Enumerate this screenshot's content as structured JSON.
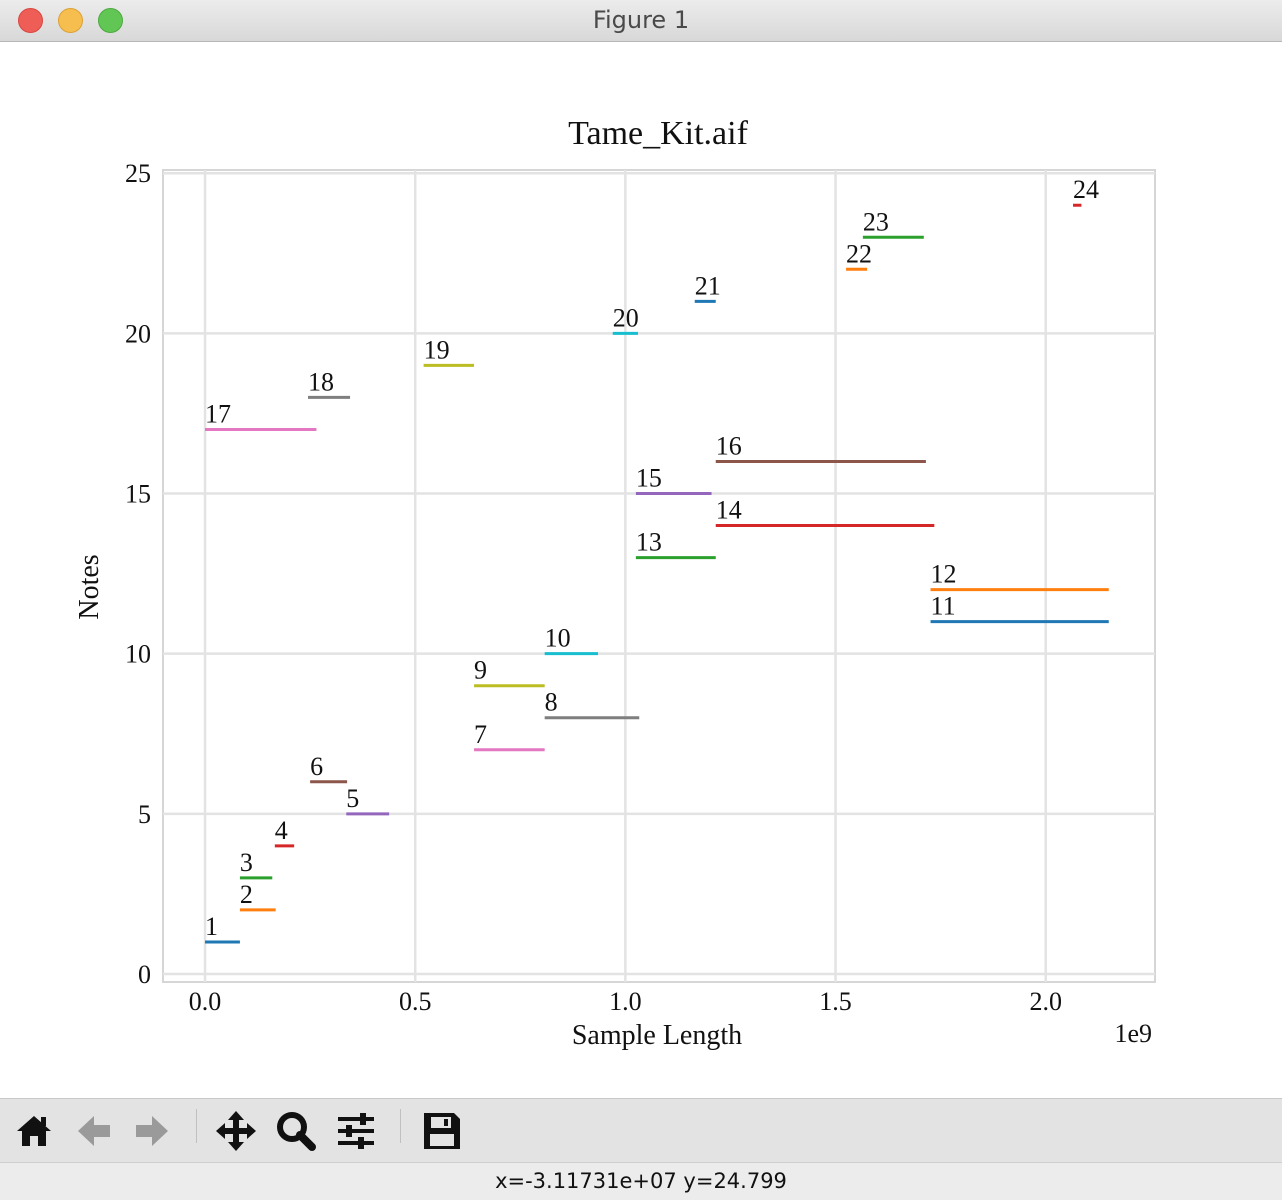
{
  "window": {
    "title": "Figure 1"
  },
  "toolbar": {
    "buttons": [
      {
        "name": "home-button",
        "icon": "home-icon"
      },
      {
        "name": "back-button",
        "icon": "arrow-left-icon"
      },
      {
        "name": "forward-button",
        "icon": "arrow-right-icon"
      },
      {
        "name": "pan-button",
        "icon": "move-icon"
      },
      {
        "name": "zoom-button",
        "icon": "magnifier-icon"
      },
      {
        "name": "configure-subplots-button",
        "icon": "sliders-icon"
      },
      {
        "name": "save-button",
        "icon": "floppy-disk-icon"
      }
    ]
  },
  "status": {
    "coords": "x=-3.11731e+07 y=24.799"
  },
  "chart_data": {
    "type": "line",
    "title": "Tame_Kit.aif",
    "xlabel": "Sample Length",
    "ylabel": "Notes",
    "x_offset_label": "1e9",
    "xlim": [
      -0.1,
      2.26
    ],
    "ylim": [
      -0.25,
      25.1
    ],
    "x_ticks": [
      0.0,
      0.5,
      1.0,
      1.5,
      2.0
    ],
    "x_tick_labels": [
      "0.0",
      "0.5",
      "1.0",
      "1.5",
      "2.0"
    ],
    "y_ticks": [
      0,
      5,
      10,
      15,
      20,
      25
    ],
    "y_tick_labels": [
      "0",
      "5",
      "10",
      "15",
      "20",
      "25"
    ],
    "grid": true,
    "series": [
      {
        "label": "1",
        "y": 1,
        "x_start": 0.0,
        "x_end": 0.083,
        "color": "#1f77b4"
      },
      {
        "label": "2",
        "y": 2,
        "x_start": 0.083,
        "x_end": 0.168,
        "color": "#ff7f0e"
      },
      {
        "label": "3",
        "y": 3,
        "x_start": 0.083,
        "x_end": 0.16,
        "color": "#2ca02c"
      },
      {
        "label": "4",
        "y": 4,
        "x_start": 0.166,
        "x_end": 0.212,
        "color": "#d62728"
      },
      {
        "label": "5",
        "y": 5,
        "x_start": 0.336,
        "x_end": 0.438,
        "color": "#9467bd"
      },
      {
        "label": "6",
        "y": 6,
        "x_start": 0.25,
        "x_end": 0.338,
        "color": "#8c564b"
      },
      {
        "label": "7",
        "y": 7,
        "x_start": 0.64,
        "x_end": 0.808,
        "color": "#e377c2"
      },
      {
        "label": "8",
        "y": 8,
        "x_start": 0.808,
        "x_end": 1.033,
        "color": "#7f7f7f"
      },
      {
        "label": "9",
        "y": 9,
        "x_start": 0.64,
        "x_end": 0.808,
        "color": "#bcbd22"
      },
      {
        "label": "10",
        "y": 10,
        "x_start": 0.808,
        "x_end": 0.935,
        "color": "#17becf"
      },
      {
        "label": "11",
        "y": 11,
        "x_start": 1.726,
        "x_end": 2.15,
        "color": "#1f77b4"
      },
      {
        "label": "12",
        "y": 12,
        "x_start": 1.726,
        "x_end": 2.15,
        "color": "#ff7f0e"
      },
      {
        "label": "13",
        "y": 13,
        "x_start": 1.025,
        "x_end": 1.215,
        "color": "#2ca02c"
      },
      {
        "label": "14",
        "y": 14,
        "x_start": 1.215,
        "x_end": 1.735,
        "color": "#d62728"
      },
      {
        "label": "15",
        "y": 15,
        "x_start": 1.025,
        "x_end": 1.205,
        "color": "#9467bd"
      },
      {
        "label": "16",
        "y": 16,
        "x_start": 1.215,
        "x_end": 1.715,
        "color": "#8c564b"
      },
      {
        "label": "17",
        "y": 17,
        "x_start": 0.0,
        "x_end": 0.265,
        "color": "#e377c2"
      },
      {
        "label": "18",
        "y": 18,
        "x_start": 0.245,
        "x_end": 0.345,
        "color": "#7f7f7f"
      },
      {
        "label": "19",
        "y": 19,
        "x_start": 0.52,
        "x_end": 0.64,
        "color": "#bcbd22"
      },
      {
        "label": "20",
        "y": 20,
        "x_start": 0.97,
        "x_end": 1.03,
        "color": "#17becf"
      },
      {
        "label": "21",
        "y": 21,
        "x_start": 1.165,
        "x_end": 1.215,
        "color": "#1f77b4"
      },
      {
        "label": "22",
        "y": 22,
        "x_start": 1.525,
        "x_end": 1.575,
        "color": "#ff7f0e"
      },
      {
        "label": "23",
        "y": 23,
        "x_start": 1.565,
        "x_end": 1.71,
        "color": "#2ca02c"
      },
      {
        "label": "24",
        "y": 24,
        "x_start": 2.065,
        "x_end": 2.085,
        "color": "#d62728"
      }
    ]
  }
}
